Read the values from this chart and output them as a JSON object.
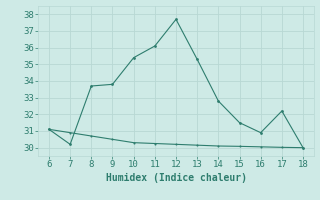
{
  "x": [
    6,
    7,
    8,
    9,
    10,
    11,
    12,
    13,
    14,
    15,
    16,
    17,
    18
  ],
  "y_humidex": [
    31.1,
    30.2,
    33.7,
    33.8,
    35.4,
    36.1,
    37.7,
    35.3,
    32.8,
    31.5,
    30.9,
    32.2,
    30.0
  ],
  "y_flat": [
    31.1,
    30.9,
    30.7,
    30.5,
    30.3,
    30.25,
    30.2,
    30.15,
    30.1,
    30.08,
    30.05,
    30.02,
    30.0
  ],
  "line_color": "#2e7d6e",
  "bg_color": "#ceeae6",
  "grid_color": "#b8d8d4",
  "xlabel": "Humidex (Indice chaleur)",
  "xlim": [
    5.5,
    18.5
  ],
  "ylim": [
    29.5,
    38.5
  ],
  "xticks": [
    6,
    7,
    8,
    9,
    10,
    11,
    12,
    13,
    14,
    15,
    16,
    17,
    18
  ],
  "yticks": [
    30,
    31,
    32,
    33,
    34,
    35,
    36,
    37,
    38
  ],
  "label_fontsize": 7,
  "tick_fontsize": 6.5
}
